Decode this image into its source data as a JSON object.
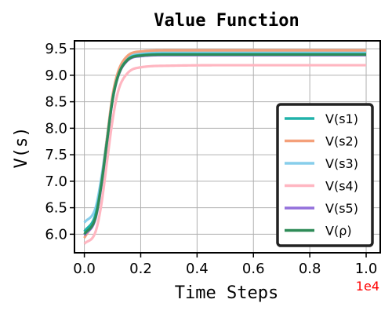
{
  "chart_data": {
    "type": "line",
    "title": "Value Function",
    "xlabel": "Time Steps",
    "ylabel": "V(s)",
    "x_offset_text": "1e4",
    "x_offset_color": "#ff0000",
    "xlim": [
      -0.035,
      1.05
    ],
    "ylim": [
      5.65,
      9.65
    ],
    "x_ticks": [
      0.0,
      0.2,
      0.4,
      0.6,
      0.8,
      1.0
    ],
    "x_tick_labels": [
      "0.0",
      "0.2",
      "0.4",
      "0.6",
      "0.8",
      "1.0"
    ],
    "y_ticks": [
      6.0,
      6.5,
      7.0,
      7.5,
      8.0,
      8.5,
      9.0,
      9.5
    ],
    "y_tick_labels": [
      "6.0",
      "6.5",
      "7.0",
      "7.5",
      "8.0",
      "8.5",
      "9.0",
      "9.5"
    ],
    "grid": true,
    "legend_position": "lower-right",
    "series": [
      {
        "name": "V(s1)",
        "color": "#20b2aa",
        "x": [
          0.0,
          0.04,
          0.06,
          0.08,
          0.1,
          0.12,
          0.15,
          0.2,
          0.3,
          0.5,
          1.0
        ],
        "values": [
          6.05,
          6.38,
          6.95,
          7.75,
          8.55,
          9.0,
          9.28,
          9.38,
          9.4,
          9.4,
          9.4
        ]
      },
      {
        "name": "V(s2)",
        "color": "#f4a07a",
        "x": [
          0.0,
          0.04,
          0.06,
          0.08,
          0.1,
          0.12,
          0.15,
          0.2,
          0.3,
          0.5,
          1.0
        ],
        "values": [
          5.93,
          6.35,
          6.95,
          7.8,
          8.62,
          9.07,
          9.35,
          9.45,
          9.47,
          9.47,
          9.47
        ]
      },
      {
        "name": "V(s3)",
        "color": "#87ceeb",
        "x": [
          0.0,
          0.04,
          0.06,
          0.08,
          0.1,
          0.12,
          0.15,
          0.2,
          0.3,
          0.5,
          1.0
        ],
        "values": [
          6.22,
          6.5,
          7.05,
          7.8,
          8.55,
          9.02,
          9.3,
          9.41,
          9.44,
          9.44,
          9.44
        ]
      },
      {
        "name": "V(s4)",
        "color": "#ffb6c1",
        "x": [
          0.0,
          0.04,
          0.06,
          0.08,
          0.1,
          0.12,
          0.15,
          0.2,
          0.3,
          0.5,
          1.0
        ],
        "values": [
          5.82,
          6.05,
          6.55,
          7.35,
          8.15,
          8.7,
          9.02,
          9.15,
          9.18,
          9.19,
          9.19
        ]
      },
      {
        "name": "V(s5)",
        "color": "#9370db",
        "x": [
          0.0,
          0.04,
          0.06,
          0.08,
          0.1,
          0.12,
          0.15,
          0.2,
          0.3,
          0.5,
          1.0
        ],
        "values": [
          5.98,
          6.3,
          6.9,
          7.72,
          8.52,
          8.98,
          9.26,
          9.36,
          9.38,
          9.38,
          9.38
        ]
      },
      {
        "name": "V(ρ)",
        "color": "#2e8b57",
        "x": [
          0.0,
          0.04,
          0.06,
          0.08,
          0.1,
          0.12,
          0.15,
          0.2,
          0.3,
          0.5,
          1.0
        ],
        "values": [
          6.0,
          6.32,
          6.92,
          7.73,
          8.53,
          8.99,
          9.27,
          9.37,
          9.39,
          9.39,
          9.39
        ]
      }
    ]
  }
}
